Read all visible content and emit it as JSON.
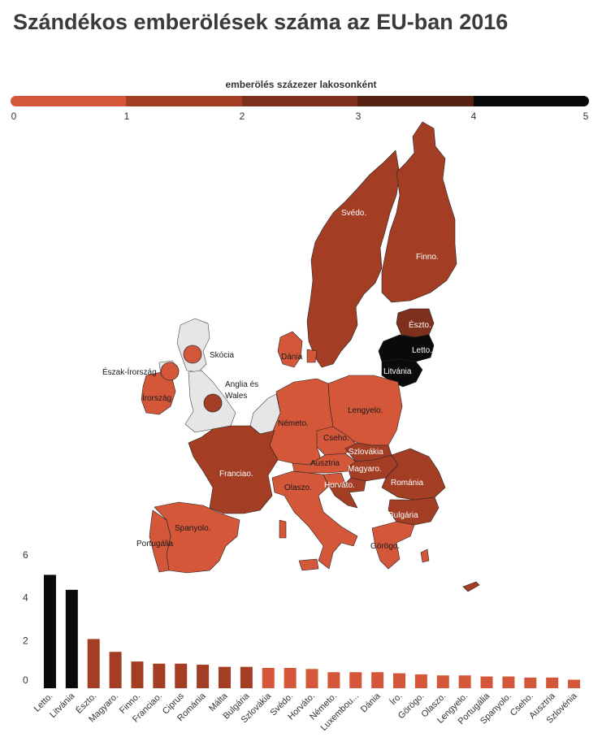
{
  "header": {
    "title": "Szándékos emberölések száma az EU-ban 2016"
  },
  "legend": {
    "title": "emberölés százezer lakosonként",
    "ticks": [
      "0",
      "1",
      "2",
      "3",
      "4",
      "5"
    ],
    "colors": [
      "#d4573a",
      "#a33e24",
      "#7e301c",
      "#572213",
      "#2a1009"
    ]
  },
  "map": {
    "labels": {
      "svedo": "Svédo.",
      "finno": "Finno.",
      "eszto": "Észto.",
      "letto": "Letto.",
      "litvania": "Litvánia",
      "dania": "Dánia",
      "skocia": "Skócia",
      "eszak_irorszag": "Észak-Írország",
      "irorszag": "Írország",
      "anglia1": "Anglia és",
      "anglia2": "Wales",
      "nemeto": "Németo.",
      "lengyelo": "Lengyelo.",
      "cseho": "Cseho.",
      "szlovakia": "Szlovákia",
      "ausztria": "Ausztria",
      "magyaro": "Magyaro.",
      "romania": "Románia",
      "franciao": "Franciao.",
      "olaszo": "Olaszo.",
      "horvato": "Horváto.",
      "bulgaria": "Bulgária",
      "spanyolo": "Spanyolo.",
      "portugalia": "Portugália",
      "gorogo": "Görögo."
    }
  },
  "chart_data": {
    "type": "bar",
    "categories": [
      "Letto.",
      "Litvánia",
      "Észto.",
      "Magyaro.",
      "Finno.",
      "Franciao.",
      "Ciprus",
      "Románia",
      "Málta",
      "Bulgária",
      "Szlovákia",
      "Svédo.",
      "Horváto.",
      "Németo.",
      "Luxembou...",
      "Dánia",
      "Íro.",
      "Görögo.",
      "Olaszo.",
      "Lengyelo.",
      "Portugália",
      "Spanyolo.",
      "Cseho.",
      "Ausztria",
      "Szlovénia"
    ],
    "values": [
      5.3,
      4.6,
      2.3,
      1.7,
      1.25,
      1.15,
      1.15,
      1.1,
      1.0,
      1.0,
      0.95,
      0.95,
      0.9,
      0.75,
      0.75,
      0.75,
      0.7,
      0.65,
      0.6,
      0.6,
      0.55,
      0.55,
      0.5,
      0.5,
      0.4
    ],
    "title": "Szándékos emberölések száma az EU-ban 2016",
    "xlabel": "",
    "ylabel": "",
    "ylim": [
      0,
      6
    ],
    "yticks": [
      "0",
      "2",
      "4",
      "6"
    ],
    "grid": false,
    "legend": "top"
  }
}
